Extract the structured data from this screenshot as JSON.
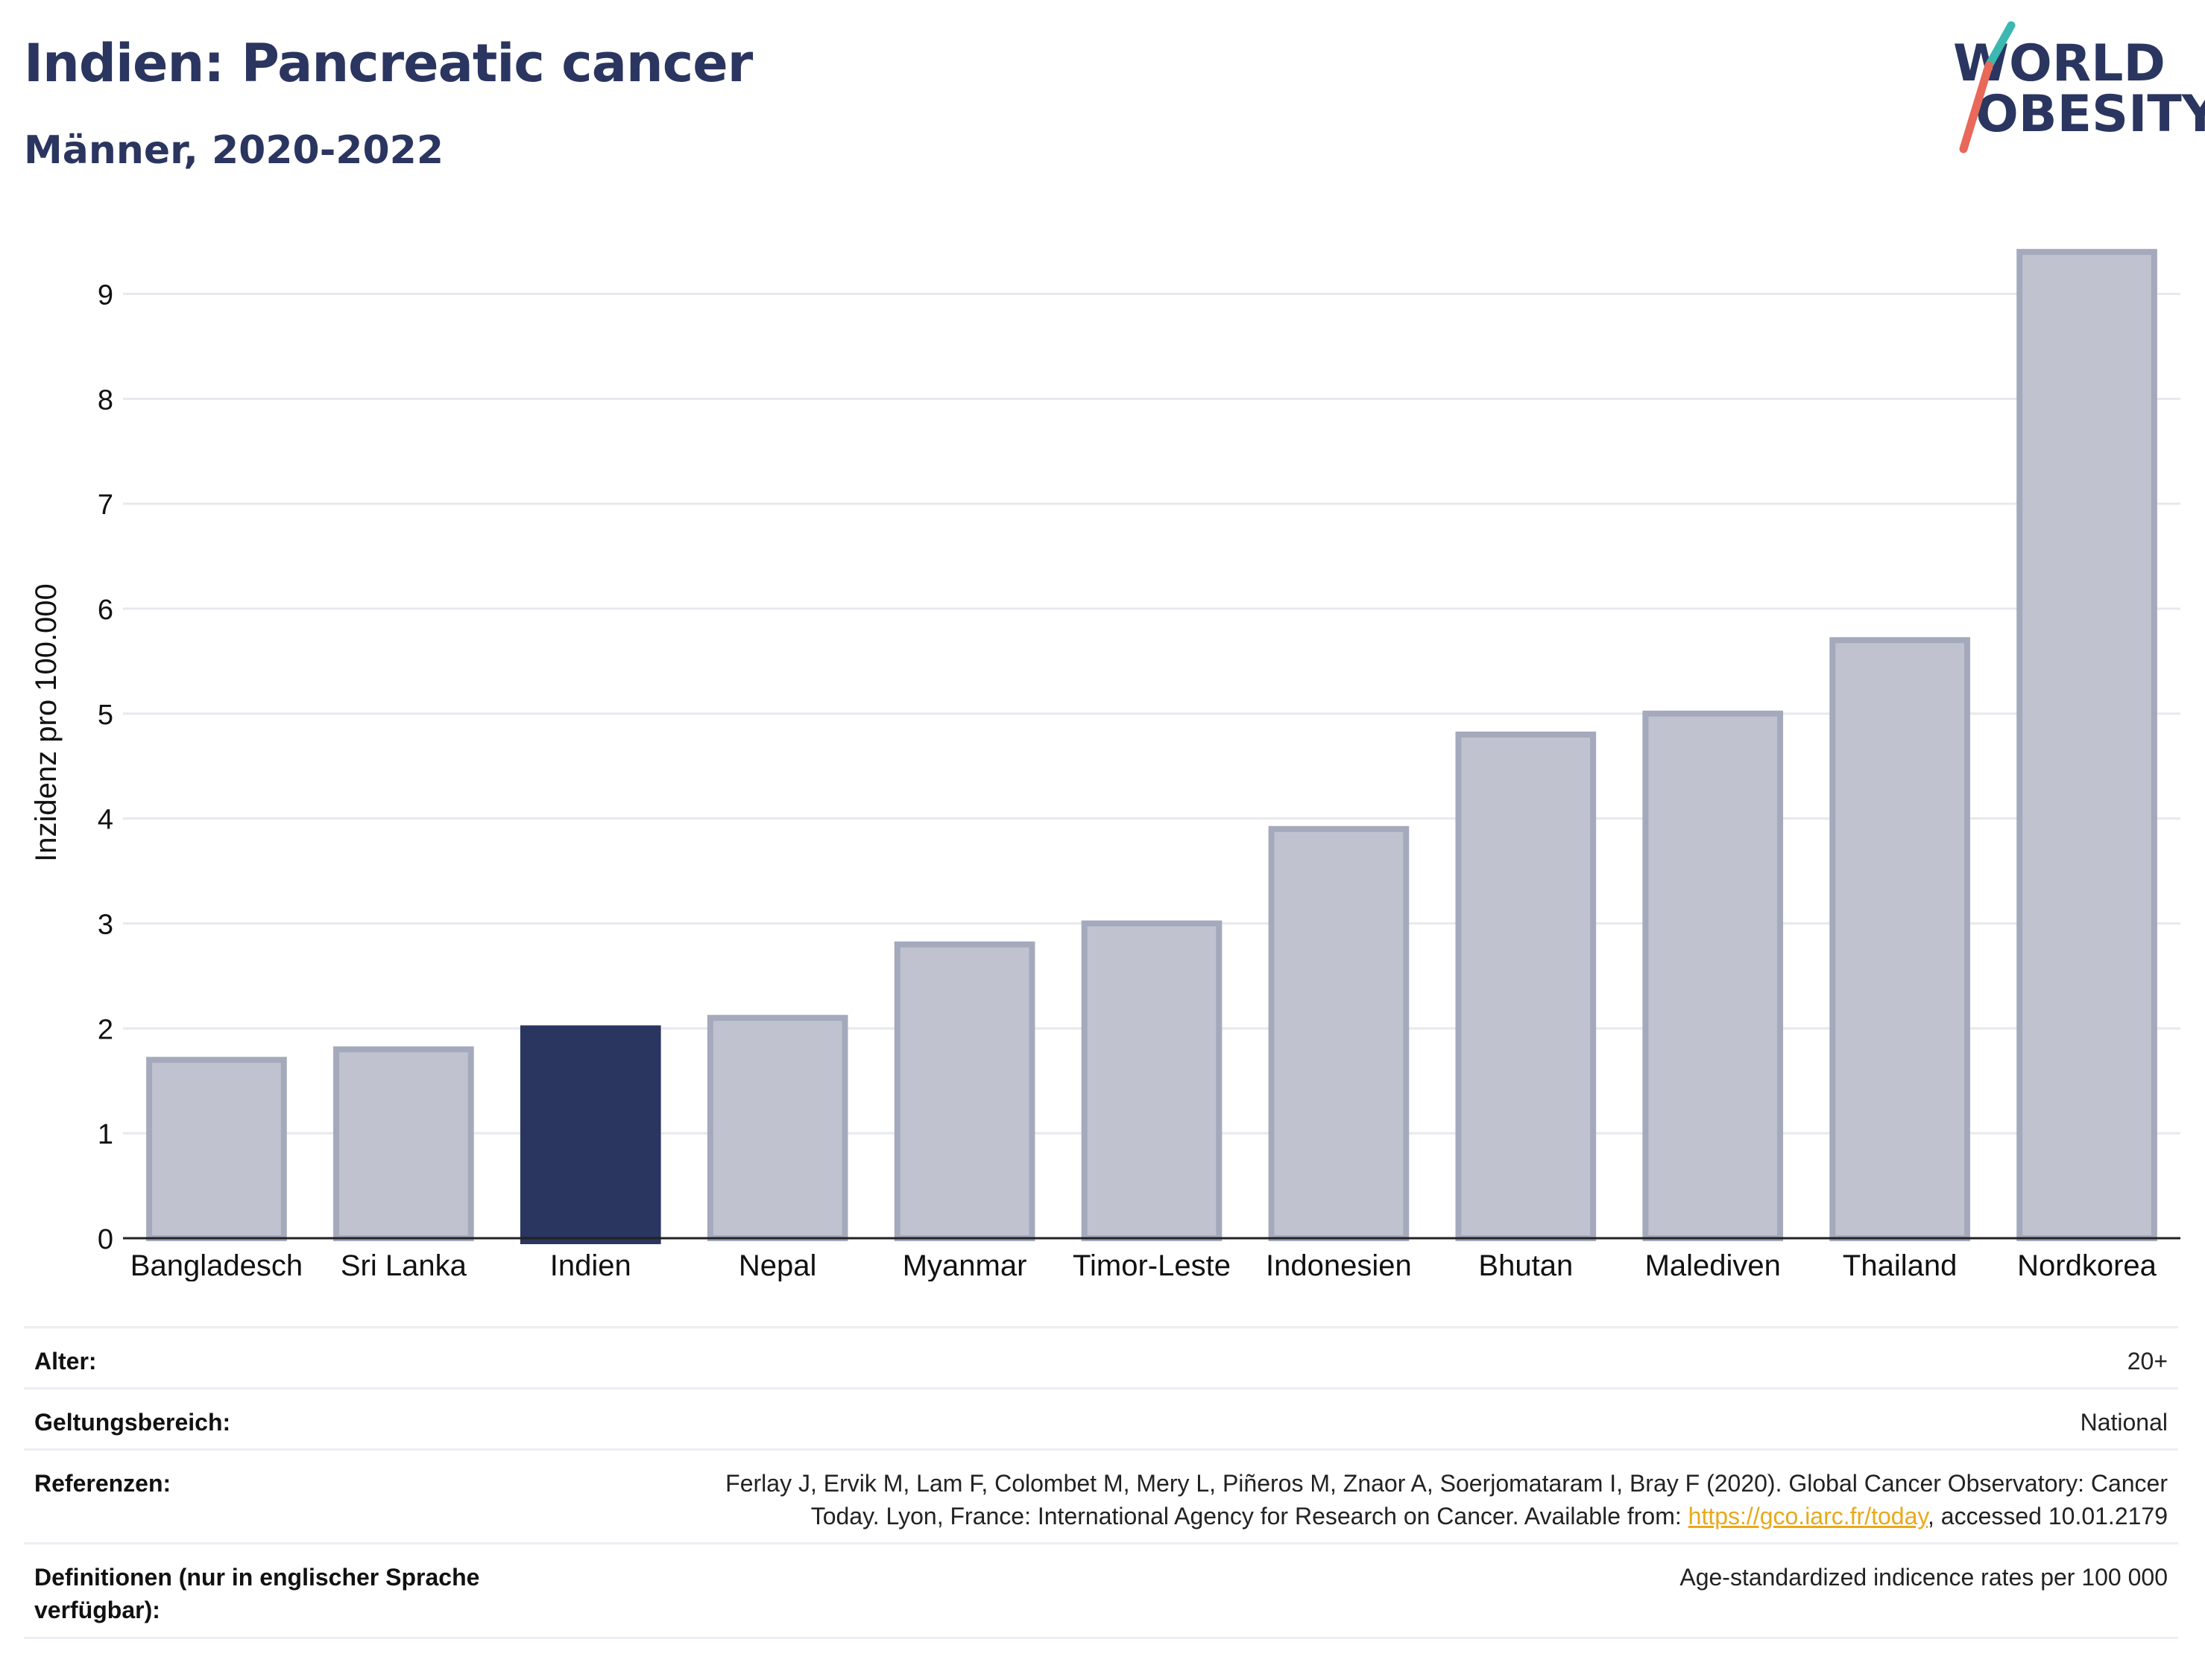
{
  "header": {
    "title": "Indien: Pancreatic cancer",
    "subtitle": "Männer, 2020-2022"
  },
  "logo": {
    "line1": "WORLD",
    "line2": "OBESITY",
    "colors": {
      "text": "#2a3560",
      "slash_top": "#3bb8b0",
      "slash_bottom": "#e8685a"
    }
  },
  "chart_data": {
    "type": "bar",
    "categories": [
      "Bangladesch",
      "Sri Lanka",
      "Indien",
      "Nepal",
      "Myanmar",
      "Timor-Leste",
      "Indonesien",
      "Bhutan",
      "Malediven",
      "Thailand",
      "Nordkorea"
    ],
    "values": [
      1.7,
      1.8,
      2.0,
      2.1,
      2.8,
      3.0,
      3.9,
      4.8,
      5.0,
      5.7,
      9.4
    ],
    "highlight": "Indien",
    "ylabel": "Inzidenz pro 100.000",
    "ylim": [
      0,
      9.6
    ],
    "yticks": [
      0,
      1,
      2,
      3,
      4,
      5,
      6,
      7,
      8,
      9
    ],
    "grid": true,
    "colors": {
      "bar": "#c0c3cf",
      "bar_edge": "#a4a9bc",
      "highlight": "#2a3560"
    }
  },
  "meta": {
    "rows": [
      {
        "label": "Alter:",
        "value": "20+"
      },
      {
        "label": "Geltungsbereich:",
        "value": "National"
      },
      {
        "label": "Referenzen:",
        "value_line1": "Ferlay J, Ervik M, Lam F, Colombet M, Mery L, Piñeros M, Znaor A, Soerjomataram I, Bray F (2020). Global Cancer Observatory: Cancer",
        "value_line2_pre": "Today. Lyon, France: International Agency for Research on Cancer. Available from: ",
        "link": "https://gco.iarc.fr/today",
        "value_line2_post": ", accessed 10.01.2179"
      },
      {
        "label_line1": "Definitionen (nur in englischer Sprache",
        "label_line2": "verfügbar):",
        "value": "Age-standardized indicence rates per 100 000"
      }
    ]
  }
}
